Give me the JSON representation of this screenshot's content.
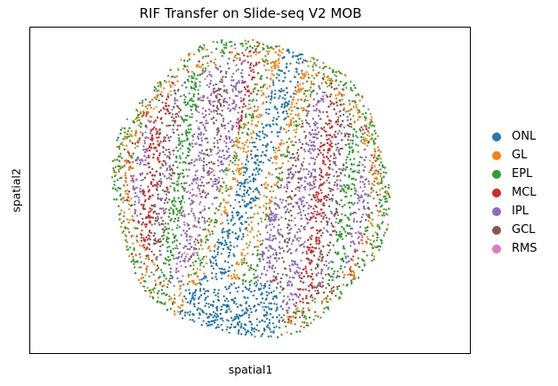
{
  "chart_data": {
    "type": "scatter",
    "title": "RIF Transfer on Slide-seq V2 MOB",
    "xlabel": "spatial1",
    "ylabel": "spatial2",
    "grid": false,
    "legend_position": "right",
    "xticks": [],
    "yticks": [],
    "series": [
      {
        "name": "ONL",
        "color": "#1f77b4"
      },
      {
        "name": "GL",
        "color": "#ff7f0e"
      },
      {
        "name": "EPL",
        "color": "#2ca02c"
      },
      {
        "name": "MCL",
        "color": "#d62728"
      },
      {
        "name": "IPL",
        "color": "#9467bd"
      },
      {
        "name": "GCL",
        "color": "#8c564b"
      },
      {
        "name": "RMS",
        "color": "#e377c2"
      }
    ]
  }
}
